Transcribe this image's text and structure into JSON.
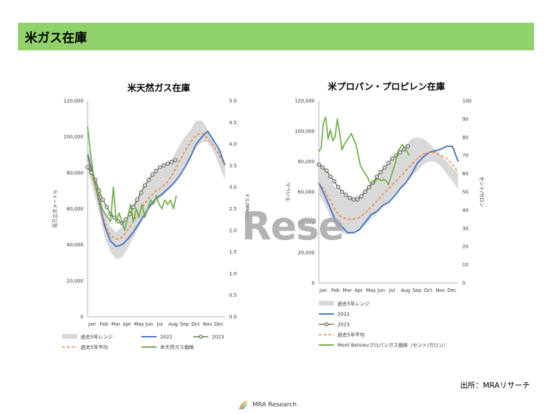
{
  "header": {
    "title": "米ガス在庫"
  },
  "watermark": "Rese",
  "source": "出所：MRAリサーチ",
  "footer": {
    "logo_text": "MRA Research"
  },
  "colors": {
    "banner": "#8fd16a",
    "band": "#d9d9d9",
    "y2022": "#4472c4",
    "y2023": "#548235",
    "avg": "#ed7d31",
    "price": "#70ad47"
  },
  "months": [
    "Jan",
    "Feb",
    "Mar",
    "Apr",
    "May",
    "Jun",
    "Jul",
    "Aug",
    "Sep",
    "Oct",
    "Nov",
    "Dec"
  ],
  "chart_data": [
    {
      "type": "line",
      "title": "米天然ガス在庫",
      "ylabel": "百万立方メートル",
      "y2label": "ドル/MMBtu",
      "ylim": [
        0,
        120000
      ],
      "y2lim": [
        0,
        5
      ],
      "yticks": [
        "0",
        "20,000",
        "40,000",
        "60,000",
        "80,000",
        "100,000",
        "120,000"
      ],
      "y2ticks": [
        "0.0",
        "0.5",
        "1.0",
        "1.5",
        "2.0",
        "2.5",
        "3.0",
        "3.5",
        "4.0",
        "4.5",
        "5.0"
      ],
      "legend": [
        "過去5年レンジ",
        "2022",
        "2023",
        "過去5年平均",
        "米天然ガス価格"
      ],
      "range": {
        "name": "過去5年レンジ",
        "x": [
          0,
          0.5,
          1,
          1.5,
          2,
          2.5,
          3,
          3.5,
          4,
          4.5,
          5,
          5.5,
          6,
          6.5,
          7,
          7.5,
          8,
          8.5,
          9,
          9.5,
          10,
          10.5,
          11,
          11.5,
          12
        ],
        "low": [
          82000,
          70000,
          58000,
          44000,
          36000,
          32000,
          33000,
          38000,
          44000,
          50000,
          56000,
          61000,
          64000,
          67000,
          70000,
          74000,
          79000,
          84000,
          89000,
          94000,
          97000,
          97000,
          92000,
          84000,
          76000
        ],
        "high": [
          95000,
          82000,
          70000,
          58000,
          50000,
          47000,
          50000,
          56000,
          62000,
          68000,
          73000,
          77000,
          80000,
          82000,
          84000,
          89000,
          95000,
          100000,
          104000,
          109000,
          109000,
          104000,
          97000,
          92000,
          86000
        ]
      },
      "series": [
        {
          "name": "2022",
          "x": [
            0,
            0.5,
            1,
            1.5,
            2,
            2.5,
            3,
            3.5,
            4,
            4.5,
            5,
            5.5,
            6,
            6.5,
            7,
            7.5,
            8,
            8.5,
            9,
            9.5,
            10,
            10.5,
            11,
            11.5,
            12
          ],
          "values": [
            90000,
            78000,
            64000,
            50000,
            42000,
            39000,
            40000,
            43000,
            47000,
            52000,
            57000,
            62000,
            66000,
            68000,
            71000,
            74000,
            78000,
            83000,
            89000,
            96000,
            100000,
            103000,
            98000,
            93000,
            84000
          ]
        },
        {
          "name": "過去5年平均",
          "x": [
            0,
            0.5,
            1,
            1.5,
            2,
            2.5,
            3,
            3.5,
            4,
            4.5,
            5,
            5.5,
            6,
            6.5,
            7,
            7.5,
            8,
            8.5,
            9,
            9.5,
            10,
            10.5,
            11,
            11.5,
            12
          ],
          "values": [
            88000,
            76000,
            64000,
            52000,
            45000,
            43000,
            44000,
            48000,
            53000,
            58000,
            63000,
            67000,
            70000,
            72000,
            75000,
            80000,
            86000,
            92000,
            97000,
            101000,
            102000,
            99000,
            95000,
            90000,
            84000
          ]
        },
        {
          "name": "2023",
          "x": [
            0,
            0.33,
            0.67,
            1,
            1.33,
            1.67,
            2,
            2.33,
            2.67,
            3,
            3.33,
            3.67,
            4,
            4.33,
            4.67,
            5,
            5.33,
            5.67,
            6,
            6.33,
            6.67,
            7,
            7.33,
            7.67
          ],
          "values": [
            83000,
            80000,
            76000,
            70000,
            65000,
            61000,
            57000,
            55000,
            53000,
            52000,
            54000,
            57000,
            61000,
            65000,
            69000,
            73000,
            76000,
            79000,
            81000,
            83000,
            84000,
            85000,
            86000,
            87000
          ]
        },
        {
          "name": "米天然ガス価格",
          "axis": "right",
          "x": [
            0,
            0.25,
            0.5,
            0.75,
            1,
            1.25,
            1.5,
            1.75,
            2,
            2.25,
            2.5,
            2.75,
            3,
            3.25,
            3.5,
            3.75,
            4,
            4.25,
            4.5,
            4.75,
            5,
            5.25,
            5.5,
            5.75,
            6,
            6.25,
            6.5,
            6.75,
            7,
            7.25,
            7.5,
            7.75
          ],
          "values": [
            4.4,
            3.8,
            3.3,
            3.0,
            2.8,
            2.5,
            2.4,
            2.3,
            2.2,
            3.0,
            2.2,
            2.4,
            2.2,
            2.0,
            2.3,
            2.6,
            2.2,
            2.5,
            2.3,
            2.6,
            2.3,
            2.5,
            2.7,
            2.6,
            2.8,
            2.6,
            2.5,
            2.7,
            2.6,
            2.7,
            2.5,
            2.8
          ]
        }
      ]
    },
    {
      "type": "line",
      "title": "米プロパン・プロピレン在庫",
      "ylabel": "千バレル",
      "y2label": "セント/ガロン",
      "ylim": [
        0,
        120000
      ],
      "y2lim": [
        0,
        100
      ],
      "yticks": [
        "0",
        "20,000",
        "40,000",
        "60,000",
        "80,000",
        "100,000",
        "120,000"
      ],
      "y2ticks": [
        "0",
        "10",
        "20",
        "30",
        "40",
        "50",
        "60",
        "70",
        "80",
        "90",
        "100"
      ],
      "legend": [
        "過去5年レンジ",
        "2022",
        "2023",
        "過去5年平均",
        "Mont Belvieuプロパンガス価格（セント/ガロン）"
      ],
      "range": {
        "name": "過去5年レンジ",
        "x": [
          0,
          0.5,
          1,
          1.5,
          2,
          2.5,
          3,
          3.5,
          4,
          4.5,
          5,
          5.5,
          6,
          6.5,
          7,
          7.5,
          8,
          8.5,
          9,
          9.5,
          10,
          10.5,
          11,
          11.5,
          12
        ],
        "low": [
          58000,
          52000,
          44000,
          38000,
          33000,
          32000,
          33000,
          35000,
          38000,
          42000,
          46000,
          50000,
          54000,
          58000,
          62000,
          66000,
          70000,
          74000,
          78000,
          80000,
          80000,
          77000,
          72000,
          67000,
          62000
        ],
        "high": [
          80000,
          76000,
          68000,
          62000,
          58000,
          56000,
          56000,
          58000,
          62000,
          66000,
          70000,
          74000,
          78000,
          82000,
          86000,
          91000,
          95000,
          96000,
          95000,
          92000,
          88000,
          84000,
          80000,
          76000,
          72000
        ]
      },
      "series": [
        {
          "name": "2022",
          "x": [
            0,
            0.5,
            1,
            1.5,
            2,
            2.5,
            3,
            3.5,
            4,
            4.5,
            5,
            5.5,
            6,
            6.5,
            7,
            7.5,
            8,
            8.5,
            9,
            9.5,
            10,
            10.5,
            11,
            11.5,
            12
          ],
          "values": [
            66000,
            58000,
            49000,
            40000,
            37000,
            33000,
            33000,
            35000,
            40000,
            45000,
            47000,
            51000,
            53000,
            57000,
            62000,
            66000,
            72000,
            79000,
            83000,
            86000,
            87000,
            88000,
            90000,
            90000,
            80000
          ]
        },
        {
          "name": "過去5年平均",
          "x": [
            0,
            0.5,
            1,
            1.5,
            2,
            2.5,
            3,
            3.5,
            4,
            4.5,
            5,
            5.5,
            6,
            6.5,
            7,
            7.5,
            8,
            8.5,
            9,
            9.5,
            10,
            10.5,
            11,
            11.5,
            12
          ],
          "values": [
            66000,
            61000,
            54000,
            47000,
            43000,
            42000,
            42000,
            43000,
            46000,
            50000,
            54000,
            58000,
            62000,
            66000,
            70000,
            74000,
            78000,
            82000,
            85000,
            86000,
            86000,
            84000,
            82000,
            78000,
            73000
          ]
        },
        {
          "name": "2023",
          "x": [
            0,
            0.33,
            0.67,
            1,
            1.33,
            1.67,
            2,
            2.33,
            2.67,
            3,
            3.33,
            3.67,
            4,
            4.33,
            4.67,
            5,
            5.33,
            5.67,
            6,
            6.33,
            6.67,
            7,
            7.33,
            7.67
          ],
          "values": [
            78000,
            76000,
            74000,
            70000,
            67000,
            63000,
            60000,
            58000,
            56000,
            55000,
            55000,
            57000,
            60000,
            63000,
            66000,
            70000,
            73000,
            76000,
            79000,
            82000,
            84000,
            86000,
            88000,
            90000
          ]
        },
        {
          "name": "Mont Belvieuプロパンガス価格（セント/ガロン）",
          "axis": "right",
          "x": [
            0,
            0.2,
            0.4,
            0.6,
            0.8,
            1,
            1.2,
            1.4,
            1.6,
            1.8,
            2,
            2.2,
            2.4,
            2.6,
            2.8,
            3,
            3.2,
            3.4,
            3.6,
            3.8,
            4,
            4.2,
            4.4,
            4.6,
            4.8,
            5,
            5.2,
            5.4,
            5.6,
            5.8,
            6,
            6.2,
            6.4,
            6.6,
            6.8,
            7,
            7.2,
            7.4,
            7.6,
            7.8
          ],
          "values": [
            72,
            74,
            88,
            91,
            79,
            84,
            78,
            80,
            90,
            82,
            73,
            76,
            78,
            80,
            82,
            79,
            76,
            70,
            64,
            62,
            60,
            58,
            55,
            54,
            55,
            57,
            57,
            56,
            57,
            56,
            54,
            58,
            62,
            66,
            72,
            74,
            76,
            74,
            72,
            70
          ]
        }
      ]
    }
  ]
}
